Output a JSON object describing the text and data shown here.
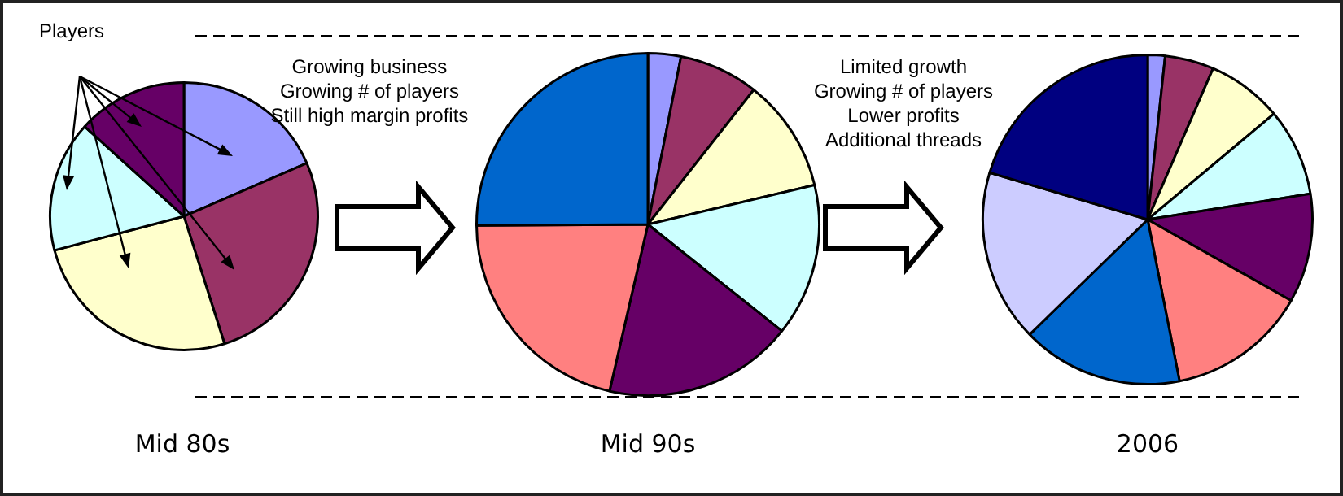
{
  "chart_data": [
    {
      "type": "pie",
      "title": "Mid 80s",
      "annotations": [
        "Players"
      ],
      "categories": [
        null,
        null,
        null,
        null,
        null
      ],
      "values": [
        18.5,
        26.6,
        25.8,
        15.8,
        13.3
      ],
      "colors": [
        "#9999ff",
        "#993366",
        "#ffffcc",
        "#ccffff",
        "#660066"
      ],
      "legend": false
    },
    {
      "type": "pie",
      "title": "Mid 90s",
      "annotations": [
        "Growing business",
        "Growing # of players",
        "Still high margin profits"
      ],
      "categories": [
        null,
        null,
        null,
        null,
        null,
        null,
        null
      ],
      "values": [
        3.1,
        7.5,
        10.7,
        14.4,
        17.9,
        21.3,
        25.1
      ],
      "colors": [
        "#9999ff",
        "#993366",
        "#ffffcc",
        "#ccffff",
        "#660066",
        "#ff8080",
        "#0066cc"
      ],
      "legend": false
    },
    {
      "type": "pie",
      "title": "2006",
      "annotations": [
        "Limited growth",
        "Growing # of players",
        "Lower profits",
        "Additional threads"
      ],
      "categories": [
        null,
        null,
        null,
        null,
        null,
        null,
        null,
        null,
        null
      ],
      "values": [
        1.7,
        4.8,
        7.4,
        8.6,
        10.7,
        13.7,
        15.8,
        16.9,
        20.4
      ],
      "colors": [
        "#9999ff",
        "#993366",
        "#ffffcc",
        "#ccffff",
        "#660066",
        "#ff8080",
        "#0066cc",
        "#ccccff",
        "#000080"
      ],
      "legend": false
    }
  ]
}
